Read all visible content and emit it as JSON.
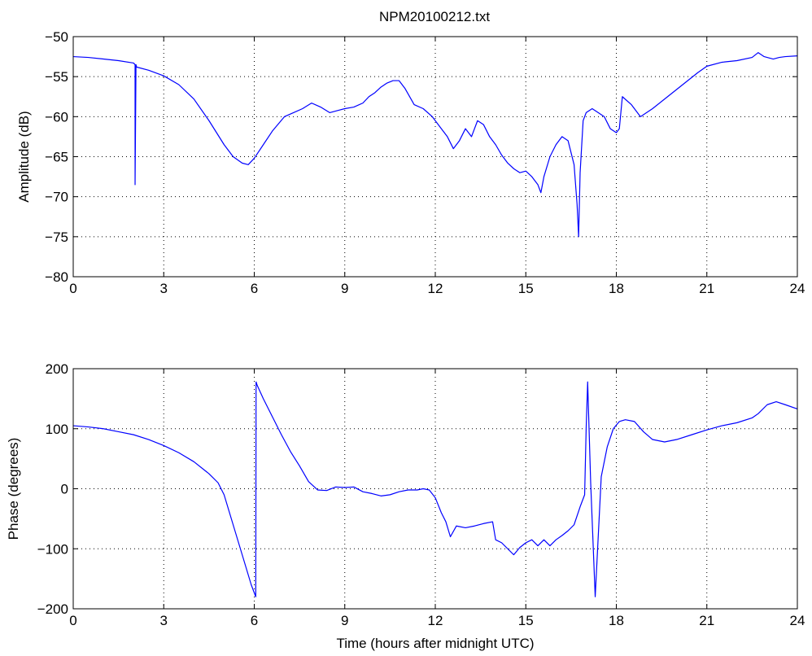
{
  "figure_title": "NPM20100212.txt",
  "colors": {
    "line": "#0000ff",
    "axes": "#000000",
    "grid": "#000000",
    "background": "#ffffff"
  },
  "chart_data": [
    {
      "type": "line",
      "title": "NPM20100212.txt",
      "xlabel": "",
      "ylabel": "Amplitude (dB)",
      "xlim": [
        0,
        24
      ],
      "ylim": [
        -80,
        -50
      ],
      "xticks": [
        0,
        3,
        6,
        9,
        12,
        15,
        18,
        21,
        24
      ],
      "yticks": [
        -80,
        -75,
        -70,
        -65,
        -60,
        -55,
        -50
      ],
      "xtick_labels": [
        "0",
        "3",
        "6",
        "9",
        "12",
        "15",
        "18",
        "21",
        "24"
      ],
      "ytick_labels": [
        "−80",
        "−75",
        "−70",
        "−65",
        "−60",
        "−55",
        "−50"
      ],
      "grid": "dotted",
      "series": [
        {
          "color": "#0000ff",
          "x": [
            0,
            0.5,
            1.0,
            1.5,
            2.0,
            2.05,
            2.05,
            2.08,
            2.1,
            2.5,
            3.0,
            3.5,
            4.0,
            4.5,
            5.0,
            5.3,
            5.6,
            5.8,
            6.0,
            6.3,
            6.6,
            7.0,
            7.3,
            7.6,
            7.9,
            8.2,
            8.5,
            8.8,
            9.0,
            9.3,
            9.6,
            9.8,
            10.0,
            10.2,
            10.4,
            10.6,
            10.8,
            11.0,
            11.3,
            11.6,
            11.9,
            12.2,
            12.4,
            12.6,
            12.8,
            13.0,
            13.2,
            13.4,
            13.6,
            13.8,
            14.0,
            14.2,
            14.4,
            14.6,
            14.8,
            15.0,
            15.2,
            15.4,
            15.5,
            15.6,
            15.8,
            16.0,
            16.2,
            16.4,
            16.6,
            16.7,
            16.75,
            16.8,
            16.9,
            17.0,
            17.2,
            17.4,
            17.6,
            17.8,
            18.0,
            18.1,
            18.2,
            18.5,
            18.8,
            19.2,
            19.7,
            20.2,
            20.7,
            21.0,
            21.5,
            22.0,
            22.5,
            22.7,
            22.9,
            23.2,
            23.4,
            23.6,
            24.0
          ],
          "y": [
            -52.5,
            -52.6,
            -52.8,
            -53.0,
            -53.3,
            -53.5,
            -68.5,
            -53.5,
            -53.8,
            -54.2,
            -54.9,
            -56.0,
            -57.8,
            -60.5,
            -63.5,
            -65.0,
            -65.8,
            -66.0,
            -65.2,
            -63.5,
            -61.8,
            -60.0,
            -59.5,
            -59.0,
            -58.3,
            -58.8,
            -59.5,
            -59.2,
            -59.0,
            -58.8,
            -58.3,
            -57.5,
            -57.0,
            -56.3,
            -55.8,
            -55.5,
            -55.5,
            -56.5,
            -58.5,
            -59.0,
            -60.0,
            -61.5,
            -62.5,
            -64.0,
            -63.0,
            -61.5,
            -62.5,
            -60.5,
            -61.0,
            -62.5,
            -63.5,
            -64.8,
            -65.8,
            -66.5,
            -67.0,
            -66.8,
            -67.5,
            -68.5,
            -69.5,
            -67.5,
            -65.0,
            -63.5,
            -62.5,
            -63.0,
            -66.0,
            -71.0,
            -75.0,
            -67.0,
            -60.5,
            -59.5,
            -59.0,
            -59.5,
            -60.0,
            -61.5,
            -62.0,
            -61.5,
            -57.5,
            -58.5,
            -60.0,
            -59.0,
            -57.5,
            -56.0,
            -54.5,
            -53.7,
            -53.2,
            -53.0,
            -52.6,
            -52.0,
            -52.5,
            -52.8,
            -52.6,
            -52.5,
            -52.4
          ]
        }
      ]
    },
    {
      "type": "line",
      "title": "",
      "xlabel": "Time (hours after midnight UTC)",
      "ylabel": "Phase (degrees)",
      "xlim": [
        0,
        24
      ],
      "ylim": [
        -200,
        200
      ],
      "xticks": [
        0,
        3,
        6,
        9,
        12,
        15,
        18,
        21,
        24
      ],
      "yticks": [
        -200,
        -100,
        0,
        100,
        200
      ],
      "xtick_labels": [
        "0",
        "3",
        "6",
        "9",
        "12",
        "15",
        "18",
        "21",
        "24"
      ],
      "ytick_labels": [
        "−200",
        "−100",
        "0",
        "100",
        "200"
      ],
      "grid": "dotted",
      "series": [
        {
          "color": "#0000ff",
          "x": [
            0,
            0.5,
            1.0,
            1.5,
            2.0,
            2.5,
            3.0,
            3.5,
            4.0,
            4.5,
            4.8,
            5.0,
            5.3,
            5.6,
            5.9,
            6.05,
            6.06,
            6.1,
            6.3,
            6.6,
            6.9,
            7.2,
            7.5,
            7.8,
            8.1,
            8.4,
            8.7,
            9.0,
            9.3,
            9.6,
            9.9,
            10.2,
            10.5,
            10.8,
            11.1,
            11.4,
            11.6,
            11.8,
            12.0,
            12.2,
            12.35,
            12.5,
            12.7,
            13.0,
            13.3,
            13.6,
            13.9,
            14.0,
            14.2,
            14.4,
            14.6,
            14.8,
            15.0,
            15.2,
            15.4,
            15.6,
            15.8,
            16.0,
            16.2,
            16.4,
            16.6,
            16.8,
            16.95,
            17.0,
            17.05,
            17.15,
            17.3,
            17.5,
            17.7,
            17.9,
            18.1,
            18.3,
            18.6,
            18.9,
            19.2,
            19.6,
            20.0,
            20.5,
            21.0,
            21.5,
            22.0,
            22.5,
            22.7,
            23.0,
            23.3,
            23.6,
            24.0
          ],
          "y": [
            105,
            103,
            100,
            95,
            90,
            82,
            72,
            60,
            45,
            25,
            10,
            -10,
            -60,
            -110,
            -160,
            -180,
            178,
            172,
            150,
            120,
            90,
            62,
            38,
            12,
            -2,
            -3,
            3,
            2,
            3,
            -5,
            -8,
            -12,
            -10,
            -5,
            -2,
            -2,
            0,
            -2,
            -15,
            -40,
            -55,
            -80,
            -62,
            -65,
            -62,
            -58,
            -55,
            -85,
            -90,
            -100,
            -110,
            -98,
            -90,
            -85,
            -95,
            -85,
            -95,
            -85,
            -78,
            -70,
            -60,
            -30,
            -10,
            100,
            178,
            10,
            -180,
            20,
            70,
            100,
            112,
            115,
            112,
            95,
            82,
            78,
            82,
            90,
            98,
            105,
            110,
            118,
            125,
            140,
            145,
            140,
            133
          ]
        }
      ]
    }
  ]
}
